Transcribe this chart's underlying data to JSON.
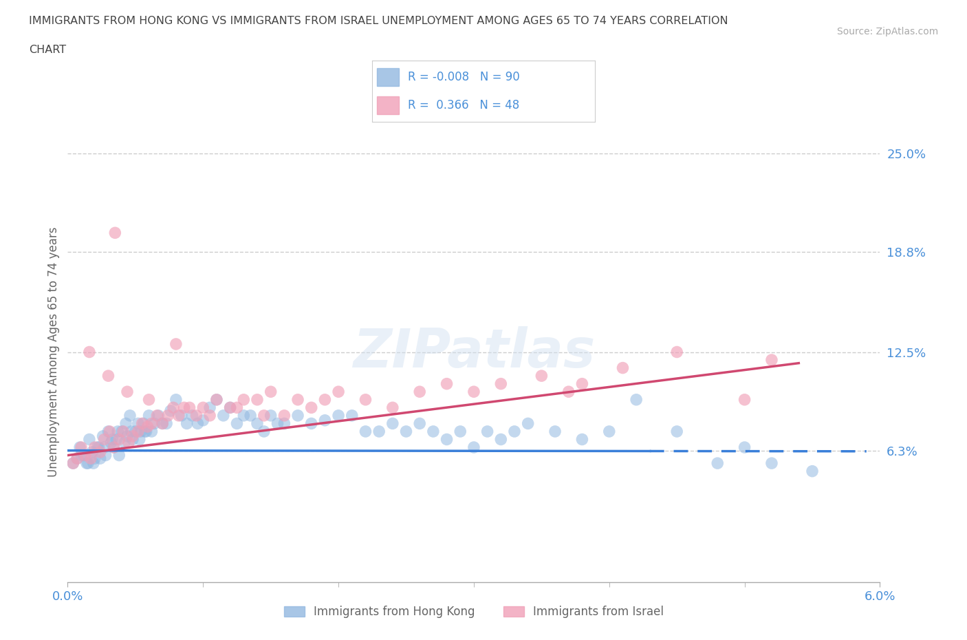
{
  "title_line1": "IMMIGRANTS FROM HONG KONG VS IMMIGRANTS FROM ISRAEL UNEMPLOYMENT AMONG AGES 65 TO 74 YEARS CORRELATION",
  "title_line2": "CHART",
  "source_text": "Source: ZipAtlas.com",
  "ylabel": "Unemployment Among Ages 65 to 74 years",
  "xlim": [
    0.0,
    6.0
  ],
  "ylim": [
    -2.0,
    27.0
  ],
  "ytick_vals": [
    6.3,
    12.5,
    18.8,
    25.0
  ],
  "ytick_labels": [
    "6.3%",
    "12.5%",
    "18.8%",
    "25.0%"
  ],
  "xtick_vals": [
    0.0,
    6.0
  ],
  "xtick_labels": [
    "0.0%",
    "6.0%"
  ],
  "background_color": "#ffffff",
  "grid_color": "#c8c8c8",
  "hk_label": "Immigrants from Hong Kong",
  "israel_label": "Immigrants from Israel",
  "hk_R": "-0.008",
  "hk_N": "90",
  "israel_R": "0.366",
  "israel_N": "48",
  "hk_color": "#92b8e0",
  "israel_color": "#f0a0b8",
  "hk_line_color": "#3a7fd9",
  "israel_line_color": "#d04870",
  "legend_text_color": "#4a90d9",
  "axis_label_color": "#4a90d9",
  "title_color": "#444444",
  "ylabel_color": "#666666",
  "hk_scatter_x": [
    0.04,
    0.07,
    0.09,
    0.12,
    0.14,
    0.16,
    0.18,
    0.2,
    0.22,
    0.24,
    0.26,
    0.28,
    0.3,
    0.32,
    0.34,
    0.36,
    0.38,
    0.4,
    0.42,
    0.44,
    0.46,
    0.48,
    0.5,
    0.52,
    0.54,
    0.56,
    0.58,
    0.6,
    0.62,
    0.64,
    0.67,
    0.7,
    0.73,
    0.76,
    0.8,
    0.84,
    0.88,
    0.92,
    0.96,
    1.0,
    1.05,
    1.1,
    1.15,
    1.2,
    1.25,
    1.3,
    1.35,
    1.4,
    1.45,
    1.5,
    1.55,
    1.6,
    1.7,
    1.8,
    1.9,
    2.0,
    2.1,
    2.2,
    2.3,
    2.4,
    2.5,
    2.6,
    2.7,
    2.8,
    2.9,
    3.0,
    3.1,
    3.2,
    3.3,
    3.4,
    3.6,
    3.8,
    4.0,
    4.2,
    4.5,
    4.8,
    5.0,
    5.2,
    5.5,
    0.1,
    0.15,
    0.19,
    0.23,
    0.27,
    0.33,
    0.37,
    0.43,
    0.47,
    0.53,
    0.57
  ],
  "hk_scatter_y": [
    5.5,
    5.8,
    6.5,
    6.0,
    5.5,
    7.0,
    6.2,
    5.8,
    6.5,
    5.8,
    7.2,
    6.0,
    7.5,
    6.8,
    6.5,
    7.0,
    6.0,
    7.5,
    6.8,
    7.2,
    8.5,
    7.0,
    7.5,
    8.0,
    7.5,
    8.0,
    7.5,
    8.5,
    7.5,
    8.0,
    8.5,
    8.0,
    8.0,
    8.8,
    9.5,
    8.5,
    8.0,
    8.5,
    8.0,
    8.2,
    9.0,
    9.5,
    8.5,
    9.0,
    8.0,
    8.5,
    8.5,
    8.0,
    7.5,
    8.5,
    8.0,
    8.0,
    8.5,
    8.0,
    8.2,
    8.5,
    8.5,
    7.5,
    7.5,
    8.0,
    7.5,
    8.0,
    7.5,
    7.0,
    7.5,
    6.5,
    7.5,
    7.0,
    7.5,
    8.0,
    7.5,
    7.0,
    7.5,
    9.5,
    7.5,
    5.5,
    6.5,
    5.5,
    5.0,
    6.0,
    5.5,
    5.5,
    6.5,
    6.5,
    7.0,
    7.5,
    8.0,
    7.5,
    7.0,
    7.5
  ],
  "israel_scatter_x": [
    0.04,
    0.07,
    0.1,
    0.13,
    0.17,
    0.2,
    0.24,
    0.27,
    0.31,
    0.34,
    0.38,
    0.41,
    0.45,
    0.48,
    0.52,
    0.55,
    0.59,
    0.62,
    0.66,
    0.7,
    0.74,
    0.78,
    0.82,
    0.86,
    0.9,
    0.95,
    1.0,
    1.1,
    1.2,
    1.3,
    1.4,
    1.5,
    1.6,
    1.7,
    1.8,
    1.9,
    2.0,
    2.2,
    2.4,
    2.6,
    2.8,
    3.0,
    3.2,
    3.5,
    3.8,
    4.1,
    4.5,
    5.2
  ],
  "israel_scatter_y": [
    5.5,
    5.8,
    6.5,
    6.0,
    5.8,
    6.5,
    6.2,
    7.0,
    7.5,
    6.5,
    7.0,
    7.5,
    6.8,
    7.2,
    7.5,
    8.0,
    7.8,
    8.0,
    8.5,
    8.0,
    8.5,
    9.0,
    8.5,
    9.0,
    9.0,
    8.5,
    9.0,
    9.5,
    9.0,
    9.5,
    9.5,
    10.0,
    8.5,
    9.5,
    9.0,
    9.5,
    10.0,
    9.5,
    9.0,
    10.0,
    10.5,
    10.0,
    10.5,
    11.0,
    10.5,
    11.5,
    12.5,
    12.0
  ],
  "israel_outlier_x": [
    0.35
  ],
  "israel_outlier_y": [
    20.0
  ],
  "israel_extra_x": [
    0.16,
    0.3,
    0.44,
    0.6,
    0.8,
    1.05,
    1.25,
    1.45,
    3.7,
    5.0
  ],
  "israel_extra_y": [
    12.5,
    11.0,
    10.0,
    9.5,
    13.0,
    8.5,
    9.0,
    8.5,
    10.0,
    9.5
  ],
  "hk_trendline_solid": [
    0.0,
    4.3
  ],
  "hk_trendline_dashed": [
    4.3,
    5.9
  ],
  "hk_trendline_y_at_0": 6.3,
  "hk_trendline_y_at_6": 6.25,
  "israel_trendline_x0": 0.0,
  "israel_trendline_y0": 6.0,
  "israel_trendline_x1": 5.4,
  "israel_trendline_y1": 11.8
}
